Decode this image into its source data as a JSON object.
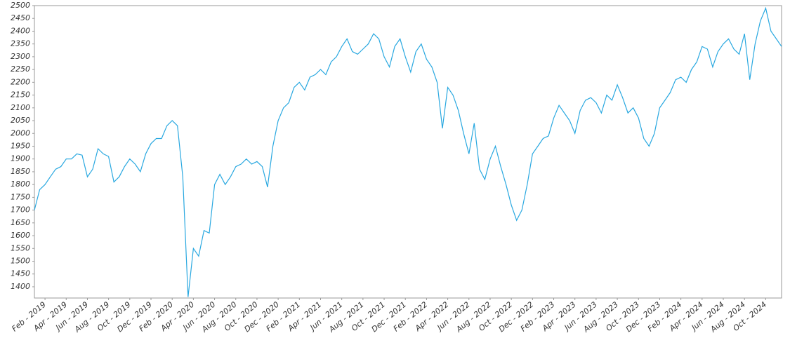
{
  "chart_data": {
    "type": "line",
    "categories": [
      null,
      null,
      "Feb - 2019",
      null,
      null,
      null,
      "Apr - 2019",
      null,
      null,
      null,
      "Jun - 2019",
      null,
      null,
      null,
      "Aug - 2019",
      null,
      null,
      null,
      "Oct - 2019",
      null,
      null,
      null,
      "Dec - 2019",
      null,
      null,
      null,
      "Feb - 2020",
      null,
      null,
      null,
      "Apr - 2020",
      null,
      null,
      null,
      "Jun - 2020",
      null,
      null,
      null,
      "Aug - 2020",
      null,
      null,
      null,
      "Oct - 2020",
      null,
      null,
      null,
      "Dec - 2020",
      null,
      null,
      null,
      "Feb - 2021",
      null,
      null,
      null,
      "Apr - 2021",
      null,
      null,
      null,
      "Jun - 2021",
      null,
      null,
      null,
      "Aug - 2021",
      null,
      null,
      null,
      "Oct - 2021",
      null,
      null,
      null,
      "Dec - 2021",
      null,
      null,
      null,
      "Feb - 2022",
      null,
      null,
      null,
      "Apr - 2022",
      null,
      null,
      null,
      "Jun - 2022",
      null,
      null,
      null,
      "Aug - 2022",
      null,
      null,
      null,
      "Oct - 2022",
      null,
      null,
      null,
      "Dec - 2022",
      null,
      null,
      null,
      "Feb - 2023",
      null,
      null,
      null,
      "Apr - 2023",
      null,
      null,
      null,
      "Jun - 2023",
      null,
      null,
      null,
      "Aug - 2023",
      null,
      null,
      null,
      "Oct - 2023",
      null,
      null,
      null,
      "Dec - 2023",
      null,
      null,
      null,
      "Feb - 2024",
      null,
      null,
      null,
      "Apr - 2024",
      null,
      null,
      null,
      "Jun - 2024",
      null,
      null,
      null,
      "Aug - 2024",
      null,
      null,
      null,
      "Oct - 2024",
      null,
      null,
      null
    ],
    "series": [
      {
        "color": "#29a8e0",
        "values": [
          1700,
          1780,
          1800,
          1830,
          1860,
          1870,
          1900,
          1900,
          1920,
          1915,
          1830,
          1860,
          1940,
          1920,
          1910,
          1810,
          1830,
          1870,
          1900,
          1880,
          1850,
          1920,
          1960,
          1980,
          1980,
          2030,
          2050,
          2030,
          1830,
          1360,
          1550,
          1520,
          1620,
          1610,
          1800,
          1840,
          1800,
          1830,
          1870,
          1880,
          1900,
          1880,
          1890,
          1870,
          1790,
          1950,
          2050,
          2100,
          2120,
          2180,
          2200,
          2170,
          2220,
          2230,
          2250,
          2230,
          2280,
          2300,
          2340,
          2370,
          2320,
          2310,
          2330,
          2350,
          2390,
          2370,
          2300,
          2260,
          2340,
          2370,
          2300,
          2240,
          2320,
          2350,
          2290,
          2260,
          2200,
          2020,
          2180,
          2150,
          2090,
          2000,
          1920,
          2040,
          1860,
          1820,
          1900,
          1950,
          1870,
          1800,
          1720,
          1660,
          1700,
          1800,
          1920,
          1950,
          1980,
          1990,
          2060,
          2110,
          2080,
          2050,
          2000,
          2090,
          2130,
          2140,
          2120,
          2080,
          2150,
          2130,
          2190,
          2140,
          2080,
          2100,
          2060,
          1980,
          1950,
          2000,
          2100,
          2130,
          2160,
          2210,
          2220,
          2200,
          2250,
          2280,
          2340,
          2330,
          2260,
          2320,
          2350,
          2370,
          2330,
          2310,
          2390,
          2210,
          2350,
          2440,
          2490,
          2400,
          2370,
          2340
        ]
      }
    ],
    "ylim": [
      1356,
      2500
    ],
    "yticks": [
      1400,
      1450,
      1500,
      1550,
      1600,
      1650,
      1700,
      1750,
      1800,
      1850,
      1900,
      1950,
      2000,
      2050,
      2100,
      2150,
      2200,
      2250,
      2300,
      2350,
      2400,
      2450,
      2500
    ]
  }
}
